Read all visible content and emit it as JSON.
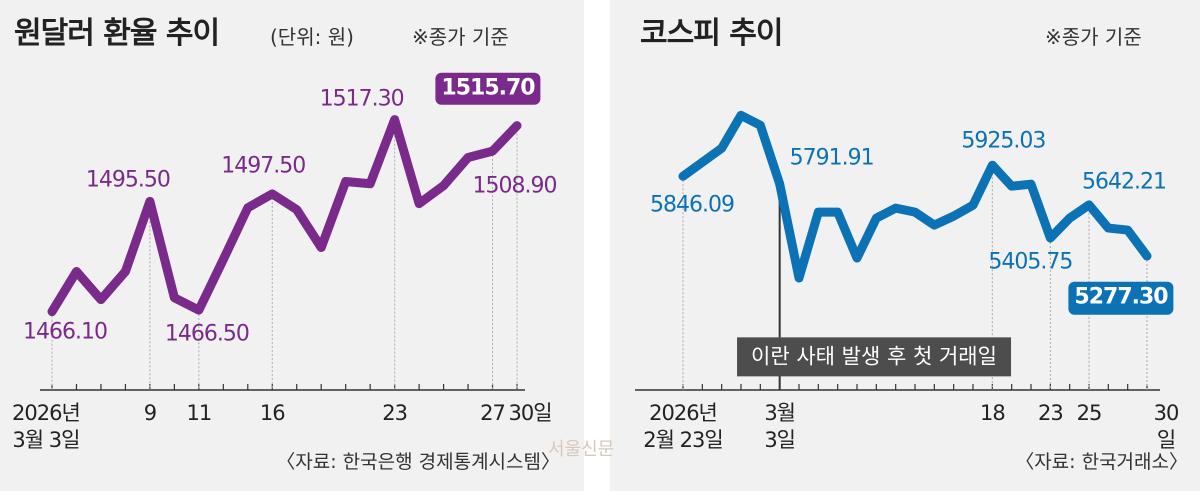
{
  "chart_data": [
    {
      "type": "line",
      "title": "원달러 환율 추이",
      "subtitle": "(단위: 원)",
      "note": "※종가 기준",
      "source": "〈자료: 한국은행 경제통계시스템〉",
      "categories": [
        "2026년\n3월 3일",
        null,
        null,
        null,
        "9",
        null,
        "11",
        null,
        null,
        "16",
        null,
        null,
        null,
        null,
        "23",
        null,
        null,
        null,
        "27",
        "30일"
      ],
      "values": [
        1466.1,
        1476.8,
        1469.3,
        1476.8,
        1495.5,
        1469.8,
        1466.5,
        1480.0,
        1493.8,
        1497.5,
        1493.3,
        1483.2,
        1500.8,
        1500.2,
        1517.3,
        1494.9,
        1499.7,
        1507.2,
        1508.9,
        1515.7
      ],
      "value_labels": [
        "1466.10",
        null,
        null,
        null,
        "1495.50",
        null,
        "1466.50",
        null,
        null,
        "1497.50",
        null,
        null,
        null,
        null,
        "1517.30",
        null,
        null,
        null,
        "1508.90",
        "1515.70"
      ],
      "color": "#7a2a8a",
      "ylim": [
        1450,
        1530
      ]
    },
    {
      "type": "line",
      "title": "코스피 추이",
      "note": "※종가 기준",
      "source": "〈자료: 한국거래소〉",
      "annotation": "이란 사태 발생 후 첫 거래일",
      "categories": [
        "2026년\n2월 23일",
        null,
        null,
        null,
        null,
        "3월\n3일",
        null,
        null,
        null,
        null,
        null,
        null,
        null,
        null,
        null,
        null,
        "18",
        null,
        null,
        "23",
        null,
        "25",
        null,
        null,
        "30일"
      ],
      "values": [
        5846.09,
        5946.4,
        6046.0,
        6281.0,
        6210.0,
        5791.91,
        5120.7,
        5590.5,
        5590.5,
        5263.0,
        5547.8,
        5619.0,
        5590.5,
        5498.0,
        5562.0,
        5640.0,
        5925.03,
        5775.6,
        5789.8,
        5405.75,
        5547.8,
        5642.21,
        5476.6,
        5462.4,
        5277.3
      ],
      "value_labels": [
        "5846.09",
        null,
        null,
        null,
        null,
        "5791.91",
        null,
        null,
        null,
        null,
        null,
        null,
        null,
        null,
        null,
        null,
        "5925.03",
        null,
        null,
        "5405.75",
        null,
        "5642.21",
        null,
        null,
        "5277.30"
      ],
      "color": "#0b72b5",
      "ylim": [
        4450,
        6590
      ]
    }
  ],
  "watermark": "서울신문"
}
